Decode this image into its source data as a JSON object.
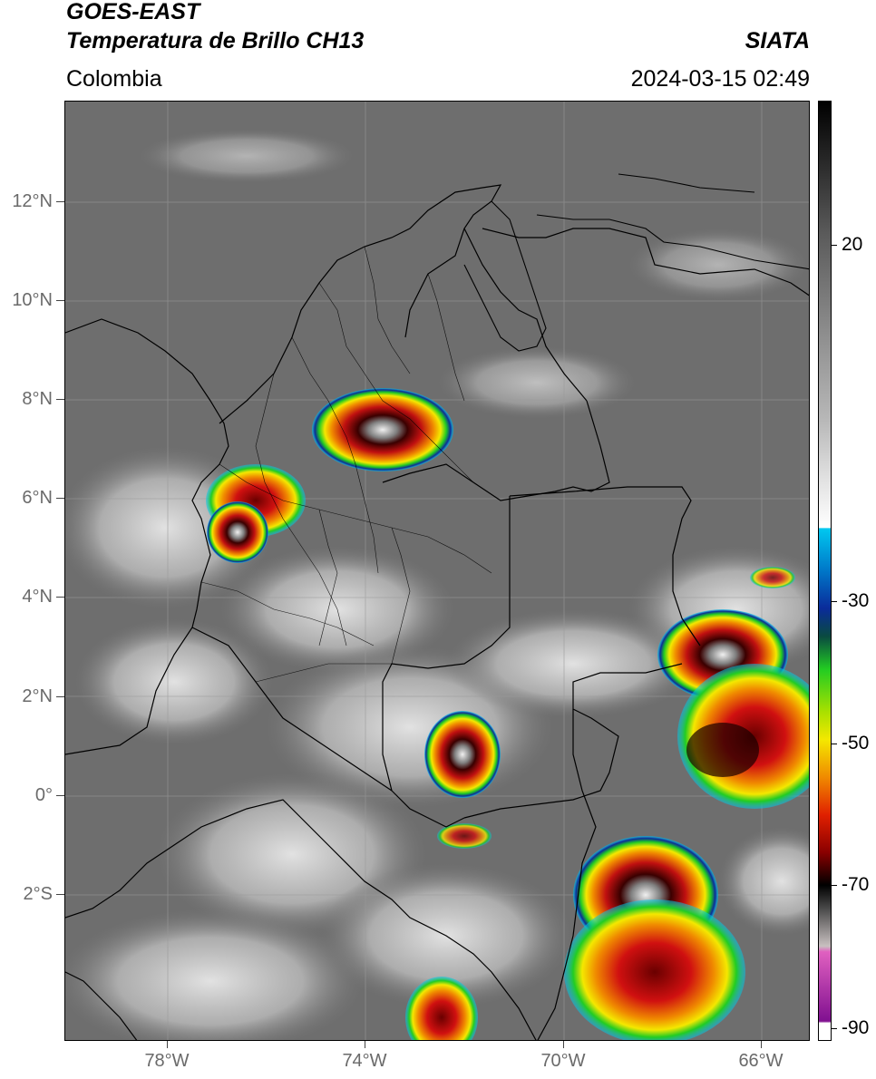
{
  "header": {
    "satellite": "GOES-EAST",
    "product": "Temperatura de Brillo CH13",
    "region": "Colombia",
    "source": "SIATA",
    "datetime": "2024-03-15 02:49"
  },
  "map": {
    "lat_labels": [
      "12°N",
      "10°N",
      "8°N",
      "6°N",
      "4°N",
      "2°N",
      "0°",
      "2°S"
    ],
    "lon_labels": [
      "78°W",
      "74°W",
      "70°W",
      "66°W"
    ],
    "background_color": "#6e6e6e",
    "grid_lines": true
  },
  "colorbar": {
    "labels": [
      "20",
      "-30",
      "-50",
      "-70",
      "-90"
    ],
    "colors": {
      "warm_gray": "#7a7a7a",
      "cold_white": "#ffffff",
      "cyan": "#00c8f0",
      "blue": "#0a2b9a",
      "green": "#22cc22",
      "yellow": "#f4e800",
      "orange": "#f08a00",
      "red": "#d01010",
      "dark_red": "#5a0000",
      "black": "#000000",
      "pink": "#e060c0",
      "purple": "#801090"
    }
  }
}
